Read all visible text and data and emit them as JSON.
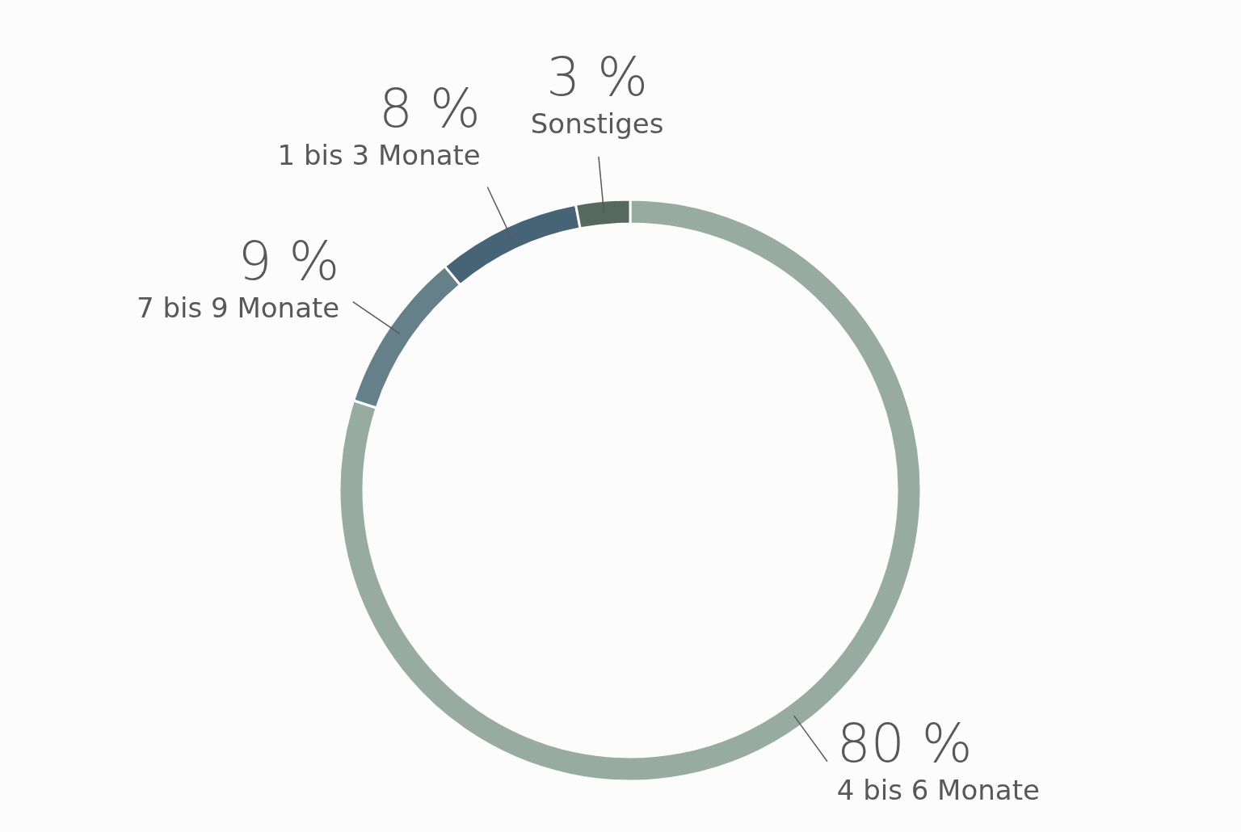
{
  "chart_data": {
    "type": "donut",
    "categories": [
      "4 bis 6 Monate",
      "7 bis 9 Monate",
      "1 bis 3 Monate",
      "Sonstiges"
    ],
    "values": [
      80,
      9,
      8,
      3
    ],
    "value_labels": [
      "80 %",
      "9 %",
      "8 %",
      "3 %"
    ],
    "colors": [
      "#97aba0",
      "#66808a",
      "#476376",
      "#55695e"
    ]
  }
}
